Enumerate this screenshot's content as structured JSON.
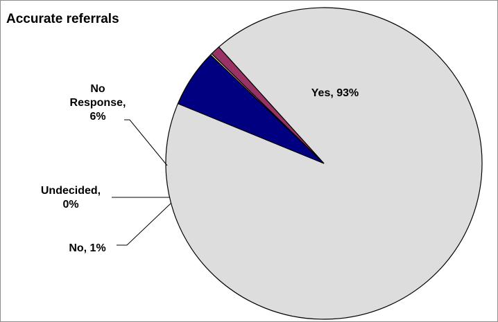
{
  "chart_data": {
    "type": "pie",
    "title": "Accurate referrals",
    "slices": [
      {
        "label": "Yes",
        "value": 93,
        "color": "#dddddd",
        "label_lines": [
          "Yes, 93%"
        ]
      },
      {
        "label": "No",
        "value": 1,
        "color": "#993366",
        "label_lines": [
          "No, 1%"
        ]
      },
      {
        "label": "Undecided",
        "value": 0,
        "color": "#ffffcc",
        "label_lines": [
          "Undecided,",
          "0%"
        ]
      },
      {
        "label": "No Response",
        "value": 6,
        "color": "#000080",
        "label_lines": [
          "No",
          "Response,",
          "6%"
        ]
      }
    ],
    "legend": "none"
  }
}
